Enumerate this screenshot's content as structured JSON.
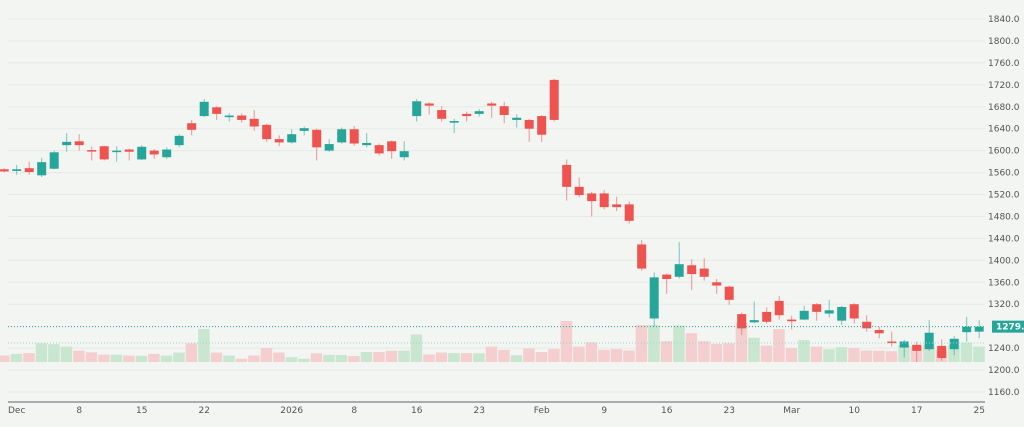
{
  "chart_data": {
    "type": "candlestick",
    "title": "",
    "xlabel": "",
    "ylabel": "",
    "ylim": [
      1140,
      1860
    ],
    "y_ticks": [
      "1840.0",
      "1800.0",
      "1760.0",
      "1720.0",
      "1680.0",
      "1640.0",
      "1600.0",
      "1560.0",
      "1520.0",
      "1480.0",
      "1440.0",
      "1400.0",
      "1360.0",
      "1320.0",
      "1240.0",
      "1200.0",
      "1160.0"
    ],
    "x_ticks": [
      {
        "label": "Dec",
        "index": 1
      },
      {
        "label": "8",
        "index": 6
      },
      {
        "label": "15",
        "index": 11
      },
      {
        "label": "22",
        "index": 16
      },
      {
        "label": "2026",
        "index": 23
      },
      {
        "label": "8",
        "index": 28
      },
      {
        "label": "16",
        "index": 33
      },
      {
        "label": "23",
        "index": 38
      },
      {
        "label": "Feb",
        "index": 43
      },
      {
        "label": "9",
        "index": 48
      },
      {
        "label": "16",
        "index": 53
      },
      {
        "label": "23",
        "index": 58
      },
      {
        "label": "Mar",
        "index": 63
      },
      {
        "label": "10",
        "index": 68
      },
      {
        "label": "17",
        "index": 73
      },
      {
        "label": "25",
        "index": 78
      }
    ],
    "last_price": {
      "value": 1279.1,
      "label": "1279.1"
    },
    "grid": true,
    "colors": {
      "up": "#26a69a",
      "down": "#ef5350",
      "up_volume": "#c8e6d0",
      "down_volume": "#f5cfcf",
      "background": "#f2f5f2"
    },
    "ohlc": [
      [
        1566,
        1568,
        1560,
        1562
      ],
      [
        1563,
        1574,
        1556,
        1566
      ],
      [
        1568,
        1580,
        1556,
        1561
      ],
      [
        1555,
        1587,
        1552,
        1579
      ],
      [
        1567,
        1600,
        1566,
        1597
      ],
      [
        1610,
        1632,
        1598,
        1616
      ],
      [
        1617,
        1630,
        1600,
        1610
      ],
      [
        1601,
        1607,
        1582,
        1599
      ],
      [
        1608,
        1609,
        1582,
        1584
      ],
      [
        1598,
        1608,
        1580,
        1600
      ],
      [
        1602,
        1604,
        1582,
        1598
      ],
      [
        1584,
        1610,
        1583,
        1607
      ],
      [
        1600,
        1603,
        1585,
        1593
      ],
      [
        1588,
        1606,
        1585,
        1602
      ],
      [
        1610,
        1630,
        1606,
        1627
      ],
      [
        1650,
        1656,
        1628,
        1638
      ],
      [
        1663,
        1694,
        1661,
        1689
      ],
      [
        1679,
        1681,
        1656,
        1667
      ],
      [
        1661,
        1668,
        1653,
        1664
      ],
      [
        1664,
        1668,
        1651,
        1656
      ],
      [
        1658,
        1674,
        1636,
        1644
      ],
      [
        1647,
        1649,
        1616,
        1621
      ],
      [
        1621,
        1628,
        1608,
        1615
      ],
      [
        1615,
        1639,
        1613,
        1630
      ],
      [
        1636,
        1644,
        1628,
        1641
      ],
      [
        1638,
        1640,
        1582,
        1606
      ],
      [
        1600,
        1621,
        1598,
        1612
      ],
      [
        1615,
        1642,
        1613,
        1639
      ],
      [
        1639,
        1645,
        1609,
        1613
      ],
      [
        1610,
        1632,
        1606,
        1614
      ],
      [
        1610,
        1613,
        1591,
        1595
      ],
      [
        1617,
        1619,
        1585,
        1599
      ],
      [
        1588,
        1617,
        1582,
        1599
      ],
      [
        1663,
        1694,
        1653,
        1690
      ],
      [
        1686,
        1688,
        1666,
        1682
      ],
      [
        1674,
        1681,
        1653,
        1658
      ],
      [
        1651,
        1658,
        1632,
        1654
      ],
      [
        1667,
        1671,
        1653,
        1663
      ],
      [
        1667,
        1676,
        1662,
        1672
      ],
      [
        1686,
        1689,
        1660,
        1682
      ],
      [
        1681,
        1689,
        1650,
        1665
      ],
      [
        1656,
        1666,
        1642,
        1660
      ],
      [
        1656,
        1658,
        1616,
        1640
      ],
      [
        1663,
        1665,
        1616,
        1629
      ],
      [
        1729,
        1731,
        1653,
        1656
      ],
      [
        1574,
        1584,
        1509,
        1534
      ],
      [
        1534,
        1551,
        1515,
        1519
      ],
      [
        1522,
        1525,
        1480,
        1508
      ],
      [
        1522,
        1528,
        1493,
        1497
      ],
      [
        1502,
        1516,
        1490,
        1497
      ],
      [
        1502,
        1507,
        1467,
        1472
      ],
      [
        1429,
        1437,
        1381,
        1385
      ],
      [
        1294,
        1378,
        1279,
        1369
      ],
      [
        1374,
        1376,
        1339,
        1366
      ],
      [
        1370,
        1433,
        1367,
        1393
      ],
      [
        1391,
        1402,
        1346,
        1375
      ],
      [
        1385,
        1404,
        1363,
        1370
      ],
      [
        1360,
        1366,
        1339,
        1354
      ],
      [
        1352,
        1354,
        1319,
        1328
      ],
      [
        1302,
        1305,
        1264,
        1276
      ],
      [
        1287,
        1325,
        1285,
        1291
      ],
      [
        1306,
        1314,
        1285,
        1288
      ],
      [
        1326,
        1335,
        1292,
        1300
      ],
      [
        1292,
        1299,
        1274,
        1289
      ],
      [
        1292,
        1317,
        1291,
        1308
      ],
      [
        1320,
        1322,
        1290,
        1306
      ],
      [
        1303,
        1328,
        1296,
        1309
      ],
      [
        1290,
        1317,
        1282,
        1315
      ],
      [
        1320,
        1322,
        1285,
        1294
      ],
      [
        1288,
        1300,
        1270,
        1276
      ],
      [
        1273,
        1279,
        1258,
        1267
      ],
      [
        1252,
        1270,
        1243,
        1249
      ],
      [
        1241,
        1255,
        1223,
        1252
      ],
      [
        1246,
        1252,
        1215,
        1235
      ],
      [
        1238,
        1291,
        1235,
        1268
      ],
      [
        1244,
        1256,
        1217,
        1222
      ],
      [
        1238,
        1262,
        1227,
        1257
      ],
      [
        1269,
        1297,
        1252,
        1279
      ],
      [
        1270,
        1291,
        1258,
        1279.1
      ]
    ],
    "volume_relative": [
      8,
      10,
      11,
      23,
      22,
      19,
      14,
      12,
      9,
      9,
      8,
      7.7,
      10,
      8,
      11.7,
      23,
      40.7,
      11.7,
      8,
      4,
      8,
      17.3,
      11.7,
      6,
      4,
      10.7,
      8.7,
      8.7,
      7.3,
      12.3,
      12.3,
      14,
      14,
      34,
      9.3,
      11.7,
      11,
      11,
      10.7,
      19,
      15,
      8.3,
      16.7,
      12.3,
      16,
      50.7,
      19,
      24.3,
      15,
      16,
      14.3,
      45.7,
      45.7,
      25.7,
      45,
      35.7,
      25.7,
      22.3,
      23,
      48.3,
      30,
      20.3,
      40.7,
      17.3,
      27,
      19,
      15.7,
      18.3,
      17.3,
      14.3,
      14,
      13.3,
      21,
      19.3,
      21.7,
      15,
      21,
      24,
      19
    ]
  }
}
